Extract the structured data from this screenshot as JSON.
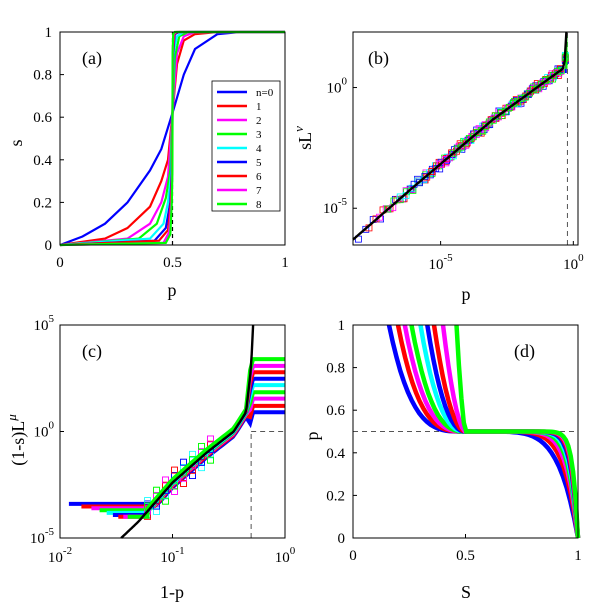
{
  "figure": {
    "series_colors": [
      "#0000ff",
      "#ff0000",
      "#ff00ff",
      "#00ff00",
      "#00ffff",
      "#0000ff",
      "#ff0000",
      "#ff00ff",
      "#00ff00"
    ],
    "fit_color": "#000000",
    "guide_color": "#555555"
  },
  "chart_data": [
    {
      "panel_label": "(a)",
      "type": "line",
      "xlabel": "p",
      "ylabel": "s",
      "xlim": [
        0,
        1
      ],
      "ylim": [
        0,
        1
      ],
      "xticks": [
        "0",
        "0.5",
        "1"
      ],
      "yticks": [
        "0",
        "0.2",
        "0.4",
        "0.6",
        "0.8",
        "1"
      ],
      "legend": [
        "n=0",
        "1",
        "2",
        "3",
        "4",
        "5",
        "6",
        "7",
        "8"
      ],
      "legend_position": "right",
      "vline_x": 0.5,
      "series": [
        {
          "name": "n=0",
          "x": [
            0,
            0.1,
            0.2,
            0.3,
            0.4,
            0.45,
            0.5,
            0.55,
            0.6,
            0.7,
            0.8,
            1.0
          ],
          "y": [
            0,
            0.04,
            0.1,
            0.2,
            0.35,
            0.45,
            0.62,
            0.8,
            0.92,
            0.99,
            1,
            1
          ]
        },
        {
          "name": "1",
          "x": [
            0,
            0.2,
            0.3,
            0.4,
            0.45,
            0.48,
            0.5,
            0.52,
            0.55,
            0.6,
            0.7,
            1.0
          ],
          "y": [
            0,
            0.03,
            0.08,
            0.18,
            0.3,
            0.4,
            0.62,
            0.85,
            0.96,
            0.99,
            1,
            1
          ]
        },
        {
          "name": "2",
          "x": [
            0,
            0.3,
            0.4,
            0.45,
            0.48,
            0.5,
            0.52,
            0.55,
            0.6,
            1.0
          ],
          "y": [
            0,
            0.03,
            0.1,
            0.2,
            0.32,
            0.62,
            0.9,
            0.98,
            1,
            1
          ]
        },
        {
          "name": "3",
          "x": [
            0,
            0.35,
            0.43,
            0.47,
            0.49,
            0.5,
            0.51,
            0.53,
            0.57,
            1.0
          ],
          "y": [
            0,
            0.03,
            0.1,
            0.22,
            0.35,
            0.62,
            0.88,
            0.98,
            1,
            1
          ]
        },
        {
          "name": "4",
          "x": [
            0,
            0.4,
            0.46,
            0.48,
            0.495,
            0.5,
            0.505,
            0.52,
            0.55,
            1.0
          ],
          "y": [
            0,
            0.03,
            0.1,
            0.2,
            0.35,
            0.62,
            0.9,
            0.98,
            1,
            1
          ]
        },
        {
          "name": "5",
          "x": [
            0,
            0.42,
            0.47,
            0.49,
            0.497,
            0.5,
            0.503,
            0.51,
            0.53,
            1.0
          ],
          "y": [
            0,
            0.02,
            0.08,
            0.2,
            0.35,
            0.62,
            0.9,
            0.99,
            1,
            1
          ]
        },
        {
          "name": "6",
          "x": [
            0,
            0.44,
            0.48,
            0.493,
            0.498,
            0.5,
            0.502,
            0.508,
            0.52,
            1.0
          ],
          "y": [
            0,
            0.02,
            0.07,
            0.2,
            0.35,
            0.62,
            0.9,
            0.99,
            1,
            1
          ]
        },
        {
          "name": "7",
          "x": [
            0,
            0.46,
            0.485,
            0.495,
            0.499,
            0.5,
            0.501,
            0.505,
            0.515,
            1.0
          ],
          "y": [
            0,
            0.01,
            0.06,
            0.2,
            0.35,
            0.62,
            0.9,
            0.99,
            1,
            1
          ]
        },
        {
          "name": "8",
          "x": [
            0,
            0.47,
            0.49,
            0.497,
            0.4995,
            0.5,
            0.5005,
            0.503,
            0.51,
            1.0
          ],
          "y": [
            0,
            0.01,
            0.05,
            0.2,
            0.35,
            0.62,
            0.9,
            0.99,
            1,
            1
          ]
        }
      ]
    },
    {
      "panel_label": "(b)",
      "type": "scatter",
      "xlabel": "p",
      "ylabel": "sL",
      "ylabel_sup": "ν",
      "xscale": "log",
      "yscale": "log",
      "xlim": [
        5e-09,
        1.5
      ],
      "ylim": [
        3e-07,
        200
      ],
      "xticks": [
        {
          "value": 1e-05,
          "label": "10",
          "sup": "-5"
        },
        {
          "value": 1,
          "label": "10",
          "sup": "0"
        }
      ],
      "yticks": [
        {
          "value": 1e-05,
          "label": "10",
          "sup": "-5"
        },
        {
          "value": 1,
          "label": "10",
          "sup": "0"
        }
      ],
      "vline_x": 0.6,
      "fit_line": {
        "x": [
          5e-09,
          1e-06,
          0.001,
          0.1,
          0.4,
          0.52,
          0.55
        ],
        "y": [
          5e-07,
          8e-05,
          0.05,
          2,
          6,
          20,
          200
        ]
      },
      "marker_y_spread": [
        0.35,
        0.3,
        0.28,
        0.25,
        0.22,
        0.18,
        0.15,
        0.12,
        0.1
      ],
      "marker_x_start": [
        8e-09,
        2e-08,
        5e-08,
        1e-07,
        3e-07,
        1e-06,
        3e-06,
        1e-05,
        3e-05
      ],
      "marker_top_y": [
        4,
        6,
        10,
        16,
        25,
        40,
        65,
        100,
        140
      ]
    },
    {
      "panel_label": "(c)",
      "type": "scatter",
      "xlabel": "1-p",
      "ylabel": "(1-s)L",
      "ylabel_sup": "μ",
      "xscale": "log",
      "yscale": "log",
      "xlim": [
        0.01,
        1
      ],
      "ylim": [
        1e-05,
        100000.0
      ],
      "xticks": [
        {
          "value": 0.01,
          "label": "10",
          "sup": "-2"
        },
        {
          "value": 0.1,
          "label": "10",
          "sup": "-1"
        },
        {
          "value": 1,
          "label": "10",
          "sup": "0"
        }
      ],
      "yticks": [
        {
          "value": 1e-05,
          "label": "10",
          "sup": "-5"
        },
        {
          "value": 1,
          "label": "10",
          "sup": "0"
        },
        {
          "value": 100000.0,
          "label": "10",
          "sup": "5"
        }
      ],
      "vline_x": 0.5,
      "fit_line": {
        "x": [
          0.035,
          0.05,
          0.1,
          0.2,
          0.35,
          0.45,
          0.5,
          0.52
        ],
        "y": [
          1e-05,
          6e-05,
          0.004,
          0.1,
          1,
          8,
          1000,
          100000
        ]
      },
      "plateau_values": [
        8,
        16,
        35,
        70,
        150,
        300,
        600,
        1200,
        2500
      ],
      "tail_values": [
        0.0004,
        0.0003,
        0.00025,
        0.0002,
        0.00015,
        0.00012,
        0.0001,
        0.0001,
        0.0001
      ]
    },
    {
      "panel_label": "(d)",
      "type": "line",
      "xlabel": "S",
      "ylabel": "p",
      "xlim": [
        0,
        1
      ],
      "ylim": [
        0,
        1
      ],
      "xticks": [
        "0",
        "0.5",
        "1"
      ],
      "yticks": [
        "0",
        "0.2",
        "0.4",
        "0.6",
        "0.8",
        "1"
      ],
      "hline_y": 0.5,
      "left_branch_x": [
        0.16,
        0.2,
        0.23,
        0.26,
        0.3,
        0.33,
        0.36,
        0.4,
        0.46
      ]
    }
  ]
}
